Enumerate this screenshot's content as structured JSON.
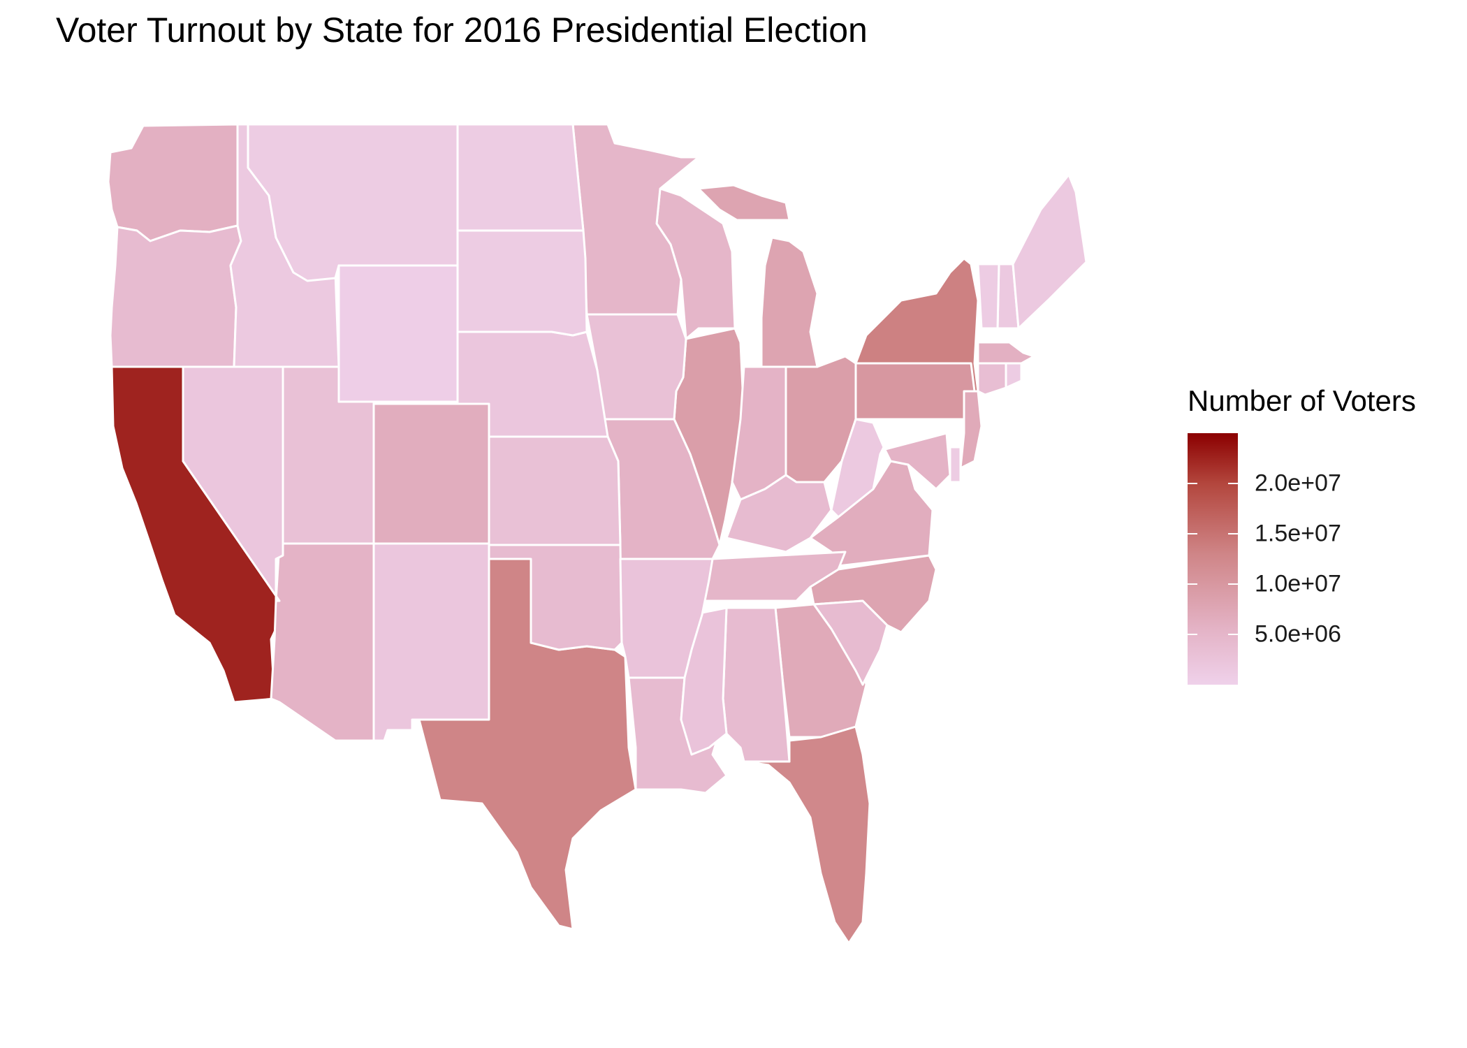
{
  "title": "Voter Turnout by State for 2016 Presidential Election",
  "legend": {
    "title": "Number of Voters",
    "ticks": [
      "2.0e+07",
      "1.5e+07",
      "1.0e+07",
      "5.0e+06"
    ],
    "tick_values": [
      20000000,
      15000000,
      10000000,
      5000000
    ],
    "range": [
      0,
      25000000
    ],
    "colors": {
      "low": "#efd1ea",
      "high": "#8b0000"
    }
  },
  "chart_data": {
    "type": "choropleth",
    "title": "Voter Turnout by State for 2016 Presidential Election",
    "legend_title": "Number of Voters",
    "value_range": [
      0,
      25000000
    ],
    "regions": [
      {
        "state": "California",
        "value": 22500000
      },
      {
        "state": "Texas",
        "value": 13000000
      },
      {
        "state": "Florida",
        "value": 12500000
      },
      {
        "state": "New York",
        "value": 13500000
      },
      {
        "state": "Pennsylvania",
        "value": 10000000
      },
      {
        "state": "Illinois",
        "value": 9000000
      },
      {
        "state": "Ohio",
        "value": 9000000
      },
      {
        "state": "Michigan",
        "value": 8000000
      },
      {
        "state": "North Carolina",
        "value": 8000000
      },
      {
        "state": "Georgia",
        "value": 7000000
      },
      {
        "state": "New Jersey",
        "value": 7000000
      },
      {
        "state": "Virginia",
        "value": 6500000
      },
      {
        "state": "Washington",
        "value": 6000000
      },
      {
        "state": "Arizona",
        "value": 5500000
      },
      {
        "state": "Massachusetts",
        "value": 6000000
      },
      {
        "state": "Indiana",
        "value": 5500000
      },
      {
        "state": "Tennessee",
        "value": 5000000
      },
      {
        "state": "Missouri",
        "value": 5500000
      },
      {
        "state": "Maryland",
        "value": 5500000
      },
      {
        "state": "Wisconsin",
        "value": 5000000
      },
      {
        "state": "Minnesota",
        "value": 5000000
      },
      {
        "state": "Colorado",
        "value": 6500000
      },
      {
        "state": "Alabama",
        "value": 4000000
      },
      {
        "state": "South Carolina",
        "value": 4000000
      },
      {
        "state": "Louisiana",
        "value": 4000000
      },
      {
        "state": "Kentucky",
        "value": 4000000
      },
      {
        "state": "Oregon",
        "value": 4000000
      },
      {
        "state": "Oklahoma",
        "value": 4000000
      },
      {
        "state": "Connecticut",
        "value": 3500000
      },
      {
        "state": "Iowa",
        "value": 3000000
      },
      {
        "state": "Utah",
        "value": 3000000
      },
      {
        "state": "Mississippi",
        "value": 2500000
      },
      {
        "state": "Arkansas",
        "value": 2500000
      },
      {
        "state": "Kansas",
        "value": 3000000
      },
      {
        "state": "Nevada",
        "value": 2000000
      },
      {
        "state": "New Mexico",
        "value": 2000000
      },
      {
        "state": "Nebraska",
        "value": 2000000
      },
      {
        "state": "West Virginia",
        "value": 1500000
      },
      {
        "state": "Idaho",
        "value": 1500000
      },
      {
        "state": "New Hampshire",
        "value": 1500000
      },
      {
        "state": "Maine",
        "value": 1500000
      },
      {
        "state": "Rhode Island",
        "value": 1000000
      },
      {
        "state": "Montana",
        "value": 1000000
      },
      {
        "state": "Delaware",
        "value": 1000000
      },
      {
        "state": "South Dakota",
        "value": 1000000
      },
      {
        "state": "North Dakota",
        "value": 1000000
      },
      {
        "state": "Vermont",
        "value": 1000000
      },
      {
        "state": "Wyoming",
        "value": 500000
      }
    ]
  }
}
